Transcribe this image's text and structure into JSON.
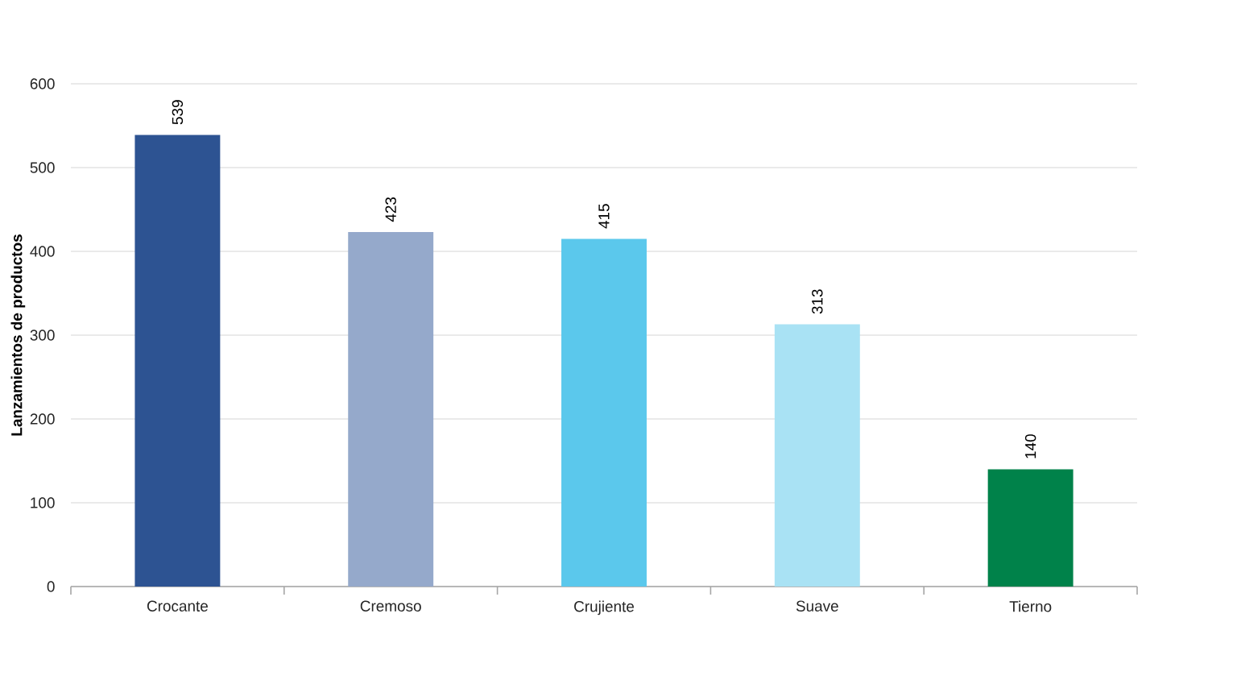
{
  "chart_data": {
    "type": "bar",
    "ylabel": "Lanzamientos de productos",
    "categories": [
      "Crocante",
      "Cremoso",
      "Crujiente",
      "Suave",
      "Tierno"
    ],
    "values": [
      539,
      423,
      415,
      313,
      140
    ],
    "colors": [
      "#2d5392",
      "#95a9cb",
      "#5bc8ec",
      "#a9e2f4",
      "#00824a"
    ],
    "ylim": [
      0,
      600
    ],
    "yticks": [
      0,
      100,
      200,
      300,
      400,
      500,
      600
    ],
    "grid": "y",
    "data_labels": true
  }
}
